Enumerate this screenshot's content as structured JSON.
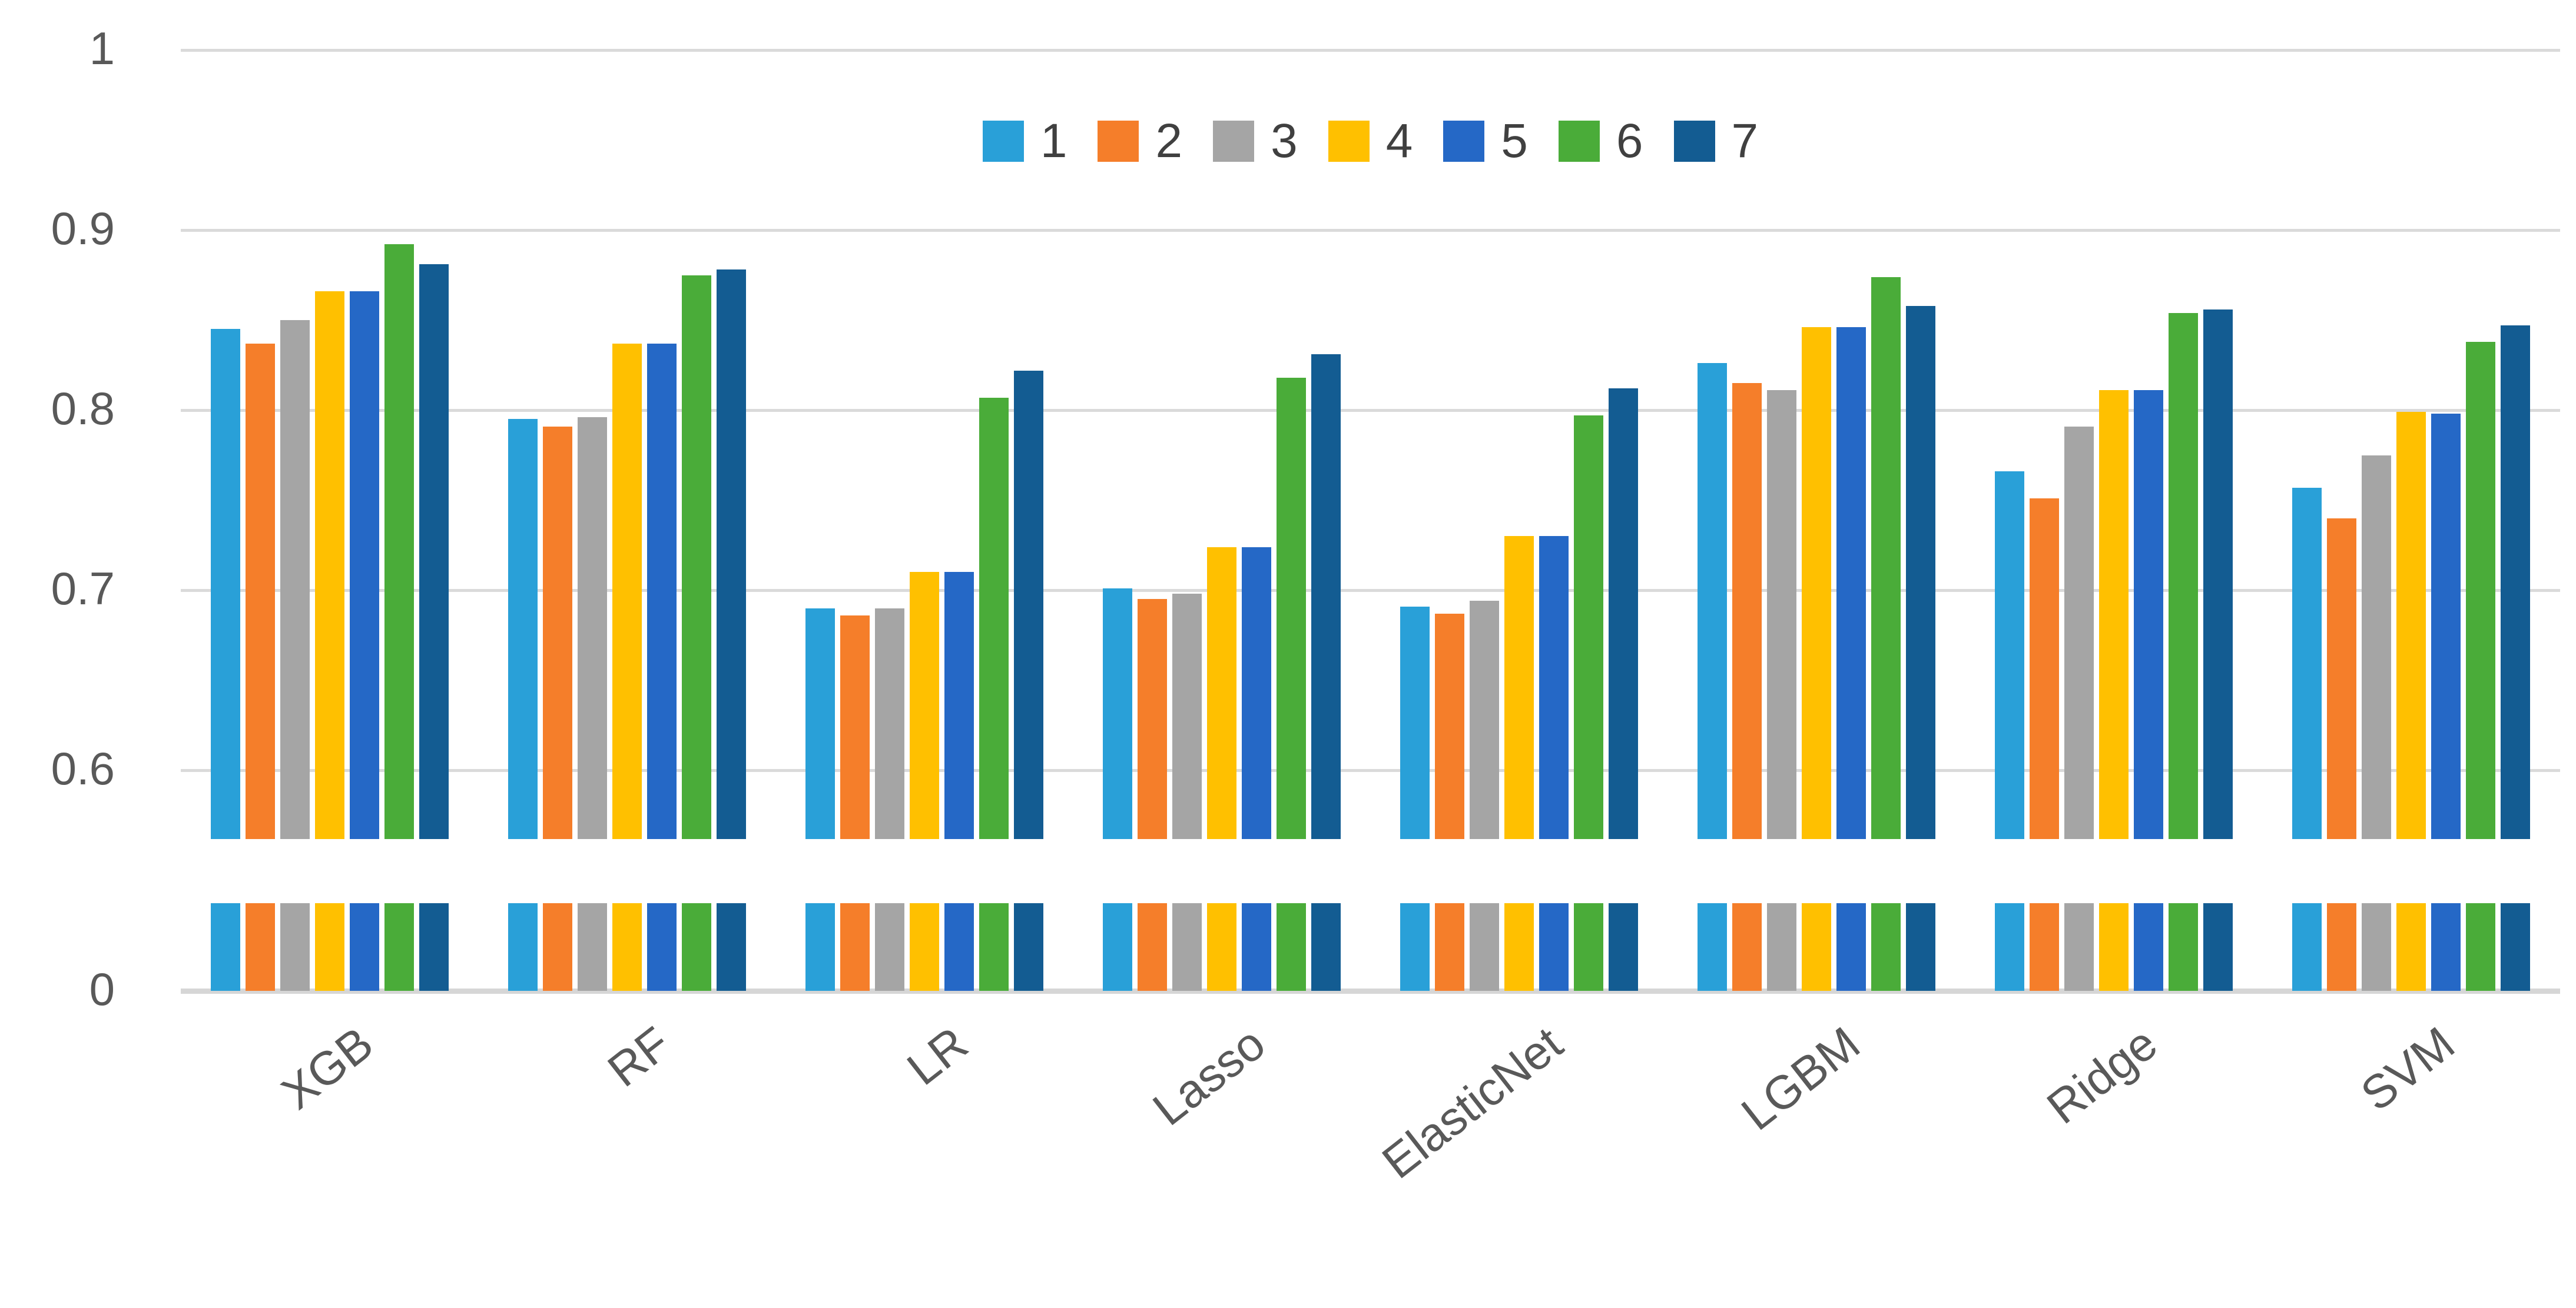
{
  "chart_data": {
    "type": "bar",
    "title": "",
    "categories": [
      "XGB",
      "RF",
      "LR",
      "Lasso",
      "ElasticNet",
      "LGBM",
      "Ridge",
      "SVM"
    ],
    "series": [
      {
        "name": "1",
        "color": "#29A0D8",
        "values": [
          0.845,
          0.795,
          0.69,
          0.701,
          0.691,
          0.826,
          0.766,
          0.757
        ]
      },
      {
        "name": "2",
        "color": "#F57E2A",
        "values": [
          0.837,
          0.791,
          0.686,
          0.695,
          0.687,
          0.815,
          0.751,
          0.74
        ]
      },
      {
        "name": "3",
        "color": "#A5A5A5",
        "values": [
          0.85,
          0.796,
          0.69,
          0.698,
          0.694,
          0.811,
          0.791,
          0.775
        ]
      },
      {
        "name": "4",
        "color": "#FFC000",
        "values": [
          0.866,
          0.837,
          0.71,
          0.724,
          0.73,
          0.846,
          0.811,
          0.799
        ]
      },
      {
        "name": "5",
        "color": "#2568C6",
        "values": [
          0.866,
          0.837,
          0.71,
          0.724,
          0.73,
          0.846,
          0.811,
          0.798
        ]
      },
      {
        "name": "6",
        "color": "#4AAC39",
        "values": [
          0.892,
          0.875,
          0.807,
          0.818,
          0.797,
          0.874,
          0.854,
          0.838
        ]
      },
      {
        "name": "7",
        "color": "#135C92",
        "values": [
          0.881,
          0.878,
          0.822,
          0.831,
          0.812,
          0.858,
          0.856,
          0.847
        ]
      }
    ],
    "ytick_labels": [
      "1",
      "0.9",
      "0.8",
      "0.7",
      "0.6",
      "0"
    ],
    "ytick_values": [
      1,
      0.9,
      0.8,
      0.7,
      0.6,
      0
    ],
    "axis_break": true,
    "ylim": [
      0,
      1
    ],
    "grid": true,
    "legend_position": "top-center",
    "legend_entries": [
      "1",
      "2",
      "3",
      "4",
      "5",
      "6",
      "7"
    ],
    "text_color": "#595959",
    "gridline_color": "#DADADA"
  }
}
